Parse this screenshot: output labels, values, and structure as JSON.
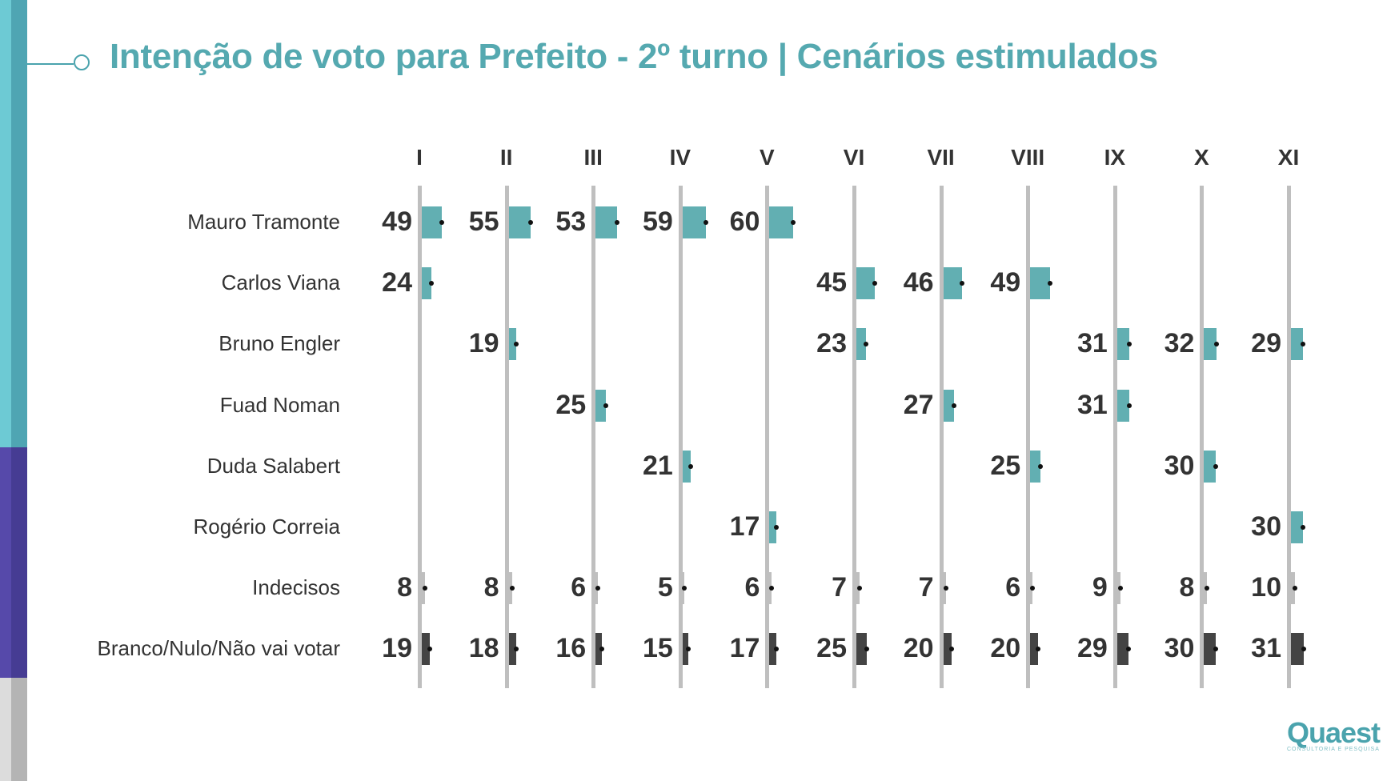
{
  "header": {
    "title": "Intenção de voto para Prefeito - 2º turno | Cenários estimulados"
  },
  "brand": {
    "logo_text": "Quaest",
    "logo_subtitle": "CONSULTORIA E PESQUISA",
    "colors": {
      "accent": "#55a9b0",
      "bar_candidate": "#62afb2",
      "bar_indecisos": "#bfbfbf",
      "bar_branco": "#444444",
      "axis": "#bfbfbf",
      "side_teal": "#5bbcc9",
      "side_purple": "#4c43a0",
      "side_gray": "#c8c8c8"
    }
  },
  "chart_data": {
    "type": "bar",
    "orientation": "horizontal",
    "title": "Intenção de voto para Prefeito - 2º turno | Cenários estimulados",
    "categories": [
      "I",
      "II",
      "III",
      "IV",
      "V",
      "VI",
      "VII",
      "VIII",
      "IX",
      "X",
      "XI"
    ],
    "rows": [
      "Mauro Tramonte",
      "Carlos Viana",
      "Bruno Engler",
      "Fuad Noman",
      "Duda Salabert",
      "Rogério Correia",
      "Indecisos",
      "Branco/Nulo/Não vai votar"
    ],
    "series": [
      {
        "name": "Mauro Tramonte",
        "kind": "candidate",
        "values": [
          49,
          55,
          53,
          59,
          60,
          null,
          null,
          null,
          null,
          null,
          null
        ]
      },
      {
        "name": "Carlos Viana",
        "kind": "candidate",
        "values": [
          24,
          null,
          null,
          null,
          null,
          45,
          46,
          49,
          null,
          null,
          null
        ]
      },
      {
        "name": "Bruno Engler",
        "kind": "candidate",
        "values": [
          null,
          19,
          null,
          null,
          null,
          23,
          null,
          null,
          31,
          32,
          29
        ]
      },
      {
        "name": "Fuad Noman",
        "kind": "candidate",
        "values": [
          null,
          null,
          25,
          null,
          null,
          null,
          27,
          null,
          31,
          null,
          null
        ]
      },
      {
        "name": "Duda Salabert",
        "kind": "candidate",
        "values": [
          null,
          null,
          null,
          21,
          null,
          null,
          null,
          25,
          null,
          30,
          null
        ]
      },
      {
        "name": "Rogério Correia",
        "kind": "candidate",
        "values": [
          null,
          null,
          null,
          null,
          17,
          null,
          null,
          null,
          null,
          null,
          30
        ]
      },
      {
        "name": "Indecisos",
        "kind": "indecisos",
        "values": [
          8,
          8,
          6,
          5,
          6,
          7,
          7,
          6,
          9,
          8,
          10
        ]
      },
      {
        "name": "Branco/Nulo/Não vai votar",
        "kind": "branco",
        "values": [
          19,
          18,
          16,
          15,
          17,
          25,
          20,
          20,
          29,
          30,
          31
        ]
      }
    ],
    "xlabel": "",
    "ylabel": "",
    "xlim": [
      0,
      100
    ],
    "grid": false,
    "legend": "none"
  }
}
